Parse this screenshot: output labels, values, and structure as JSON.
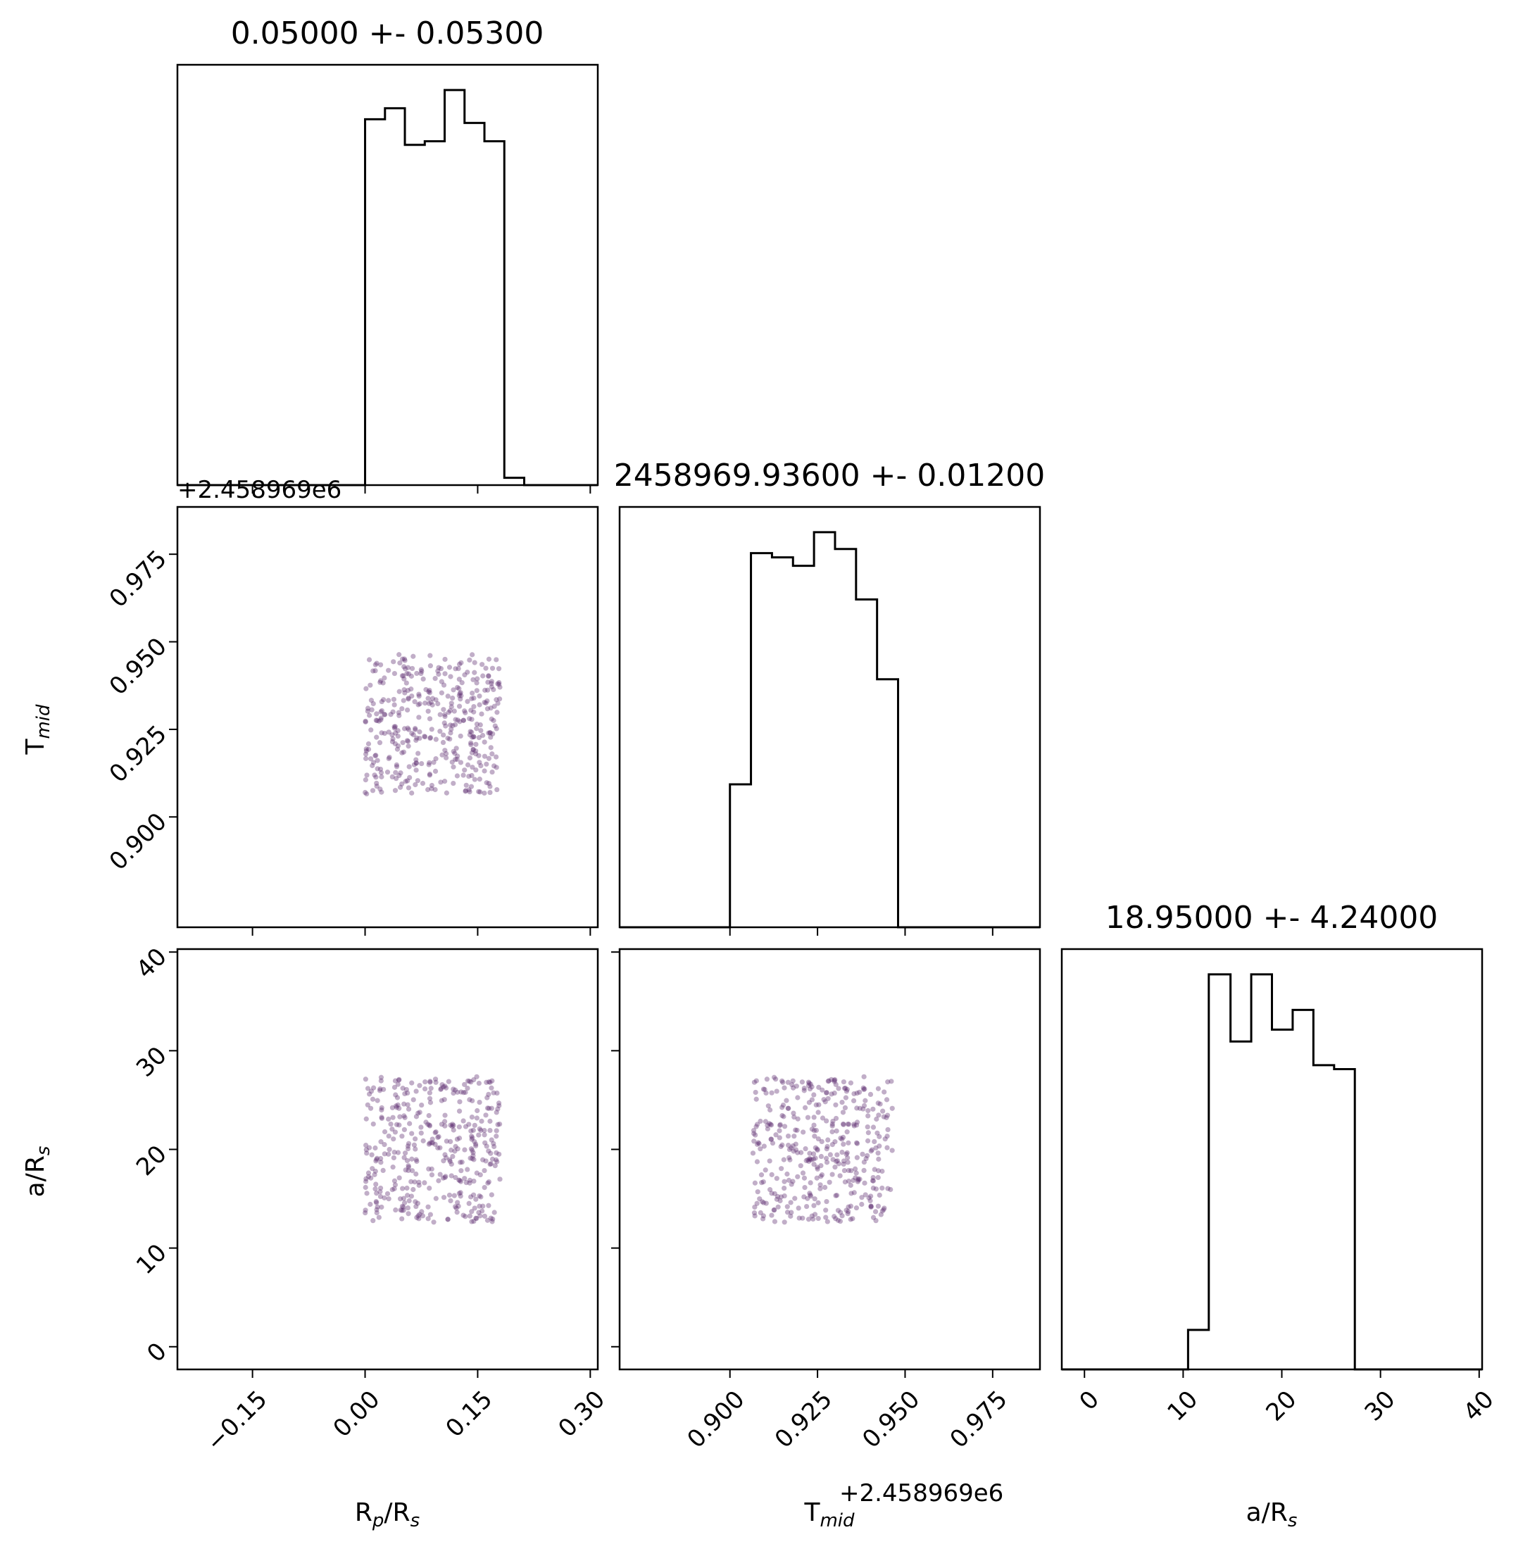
{
  "chart_data": {
    "type": "corner",
    "color_scatter": "#5b2a6e",
    "color_hist": "#000000",
    "parameters": [
      {
        "key": "rp",
        "label_main": "R",
        "label_sub": "p",
        "label_tail": "/R",
        "label_sub2": "s",
        "range": [
          -0.25,
          0.31
        ],
        "ticks": [
          "−0.15",
          "0.00",
          "0.15",
          "0.30"
        ],
        "tick_values": [
          -0.15,
          0.0,
          0.15,
          0.3
        ]
      },
      {
        "key": "tmid",
        "label_main": "T",
        "label_sub": "mid",
        "label_tail": "",
        "label_sub2": "",
        "offset_text": "+2.458969e6",
        "range": [
          0.8685,
          0.9885
        ],
        "ticks": [
          "0.900",
          "0.925",
          "0.950",
          "0.975"
        ],
        "tick_values": [
          0.9,
          0.925,
          0.95,
          0.975
        ]
      },
      {
        "key": "ars",
        "label_main": "a/R",
        "label_sub": "s",
        "label_tail": "",
        "label_sub2": "",
        "range": [
          -2.3,
          40.3
        ],
        "ticks": [
          "0",
          "10",
          "20",
          "30",
          "40"
        ],
        "tick_values": [
          0,
          10,
          20,
          30,
          40
        ]
      }
    ],
    "titles": [
      "0.05000 +- 0.05300",
      "2458969.93600 +- 0.01200",
      "18.95000 +- 4.24000"
    ],
    "histograms": [
      {
        "param": "rp",
        "edges": [
          -0.25,
          -0.0,
          0.0265,
          0.053,
          0.0795,
          0.106,
          0.1325,
          0.159,
          0.1855,
          0.212,
          0.31
        ],
        "counts": [
          0,
          1.0,
          1.03,
          0.93,
          0.94,
          1.08,
          0.99,
          0.94,
          0.02,
          0,
          0
        ]
      },
      {
        "param": "tmid",
        "edges": [
          0.8685,
          0.9,
          0.906,
          0.912,
          0.918,
          0.924,
          0.93,
          0.936,
          0.942,
          0.948,
          0.9885
        ],
        "counts": [
          0,
          0.34,
          0.89,
          0.88,
          0.86,
          0.94,
          0.9,
          0.78,
          0.59,
          0,
          0
        ]
      },
      {
        "param": "ars",
        "edges": [
          -2.3,
          10.5,
          12.6,
          14.8,
          16.9,
          19.0,
          21.1,
          23.2,
          25.3,
          27.4,
          40.3
        ],
        "counts": [
          0,
          0.1,
          1.0,
          0.83,
          1.0,
          0.86,
          0.91,
          0.77,
          0.76,
          0,
          0
        ]
      }
    ],
    "scatter_ranges": {
      "rp": [
        0.0,
        0.18
      ],
      "tmid": [
        0.9065,
        0.9465
      ],
      "ars": [
        12.6,
        27.4
      ]
    },
    "n_points": 400,
    "grid": false
  }
}
